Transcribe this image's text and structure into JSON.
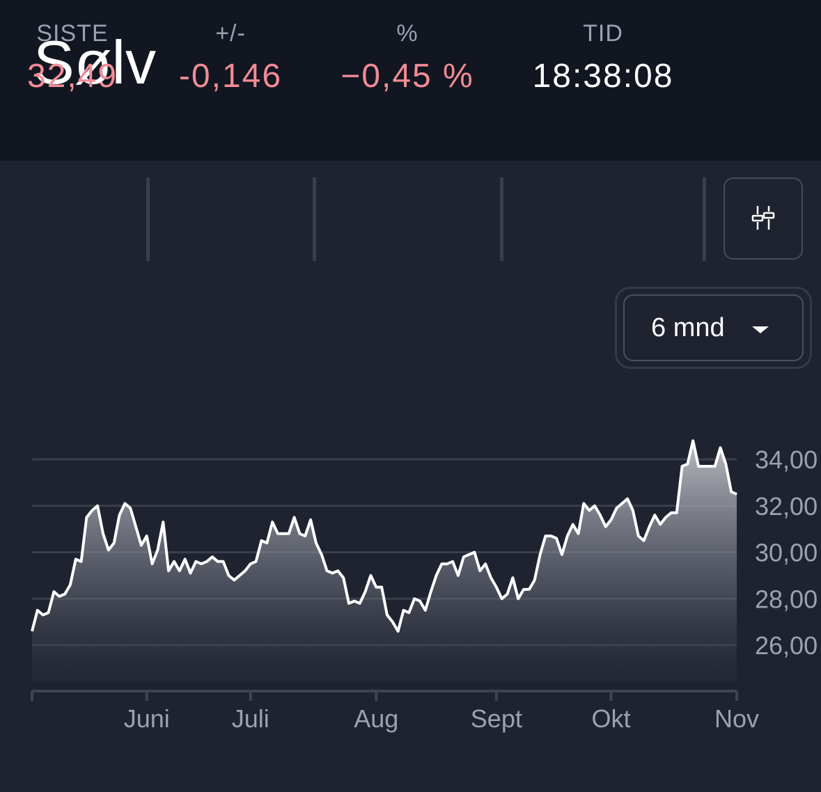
{
  "title": "Sølv",
  "stats": [
    {
      "label": "SISTE",
      "value": "32,49"
    },
    {
      "label": "+/-",
      "value": "-0,146"
    },
    {
      "label": "%",
      "value": "−0,45 %"
    },
    {
      "label": "TID",
      "value": "18:38:08"
    }
  ],
  "settings_icon": "sliders-icon",
  "range_selector": {
    "label": "6 mnd"
  },
  "colors": {
    "negative": "#f28b96",
    "background": "#1f2330",
    "header": "#111620"
  },
  "chart_data": {
    "type": "area",
    "title": "",
    "xlabel": "",
    "ylabel": "",
    "ylim": [
      24,
      34.8
    ],
    "y_ticks": [
      {
        "value": 26,
        "label": "26,00"
      },
      {
        "value": 28,
        "label": "28,00"
      },
      {
        "value": 30,
        "label": "30,00"
      },
      {
        "value": 32,
        "label": "32,00"
      },
      {
        "value": 34,
        "label": "34,00"
      }
    ],
    "x_ticks": [
      {
        "value": 21,
        "label": "Juni"
      },
      {
        "value": 40,
        "label": "Juli"
      },
      {
        "value": 63,
        "label": "Aug"
      },
      {
        "value": 85,
        "label": "Sept"
      },
      {
        "value": 106,
        "label": "Okt"
      },
      {
        "value": 129,
        "label": "Nov"
      }
    ],
    "x_start": 0,
    "x_end": 129,
    "grid": true,
    "series": [
      {
        "values": [
          26.6,
          27.5,
          27.3,
          27.4,
          28.3,
          28.1,
          28.2,
          28.6,
          29.7,
          29.6,
          31.5,
          31.8,
          32.0,
          30.8,
          30.1,
          30.4,
          31.6,
          32.1,
          31.9,
          31.1,
          30.3,
          30.7,
          29.5,
          30.1,
          31.3,
          29.2,
          29.6,
          29.2,
          29.7,
          29.1,
          29.6,
          29.5,
          29.6,
          29.8,
          29.6,
          29.6,
          29.0,
          28.8,
          29.0,
          29.2,
          29.5,
          29.6,
          30.5,
          30.4,
          31.3,
          30.8,
          30.8,
          30.8,
          31.5,
          30.8,
          30.7,
          31.4,
          30.4,
          29.9,
          29.2,
          29.1,
          29.2,
          28.9,
          27.8,
          27.9,
          27.8,
          28.3,
          29.0,
          28.5,
          28.5,
          27.3,
          27.0,
          26.6,
          27.5,
          27.4,
          28.0,
          27.9,
          27.5,
          28.3,
          29.0,
          29.5,
          29.5,
          29.6,
          29.0,
          29.8,
          29.9,
          30.0,
          29.2,
          29.5,
          28.9,
          28.5,
          28.0,
          28.2,
          28.9,
          28.0,
          28.4,
          28.4,
          28.8,
          29.9,
          30.7,
          30.7,
          30.6,
          29.9,
          30.7,
          31.2,
          30.8,
          32.1,
          31.8,
          32.0,
          31.6,
          31.1,
          31.4,
          31.9,
          32.1,
          32.3,
          31.8,
          30.7,
          30.5,
          31.1,
          31.6,
          31.2,
          31.5,
          31.7,
          31.7,
          33.7,
          33.8,
          34.8,
          33.7,
          33.7,
          33.7,
          33.7,
          34.5,
          33.8,
          32.6,
          32.5
        ]
      }
    ]
  }
}
